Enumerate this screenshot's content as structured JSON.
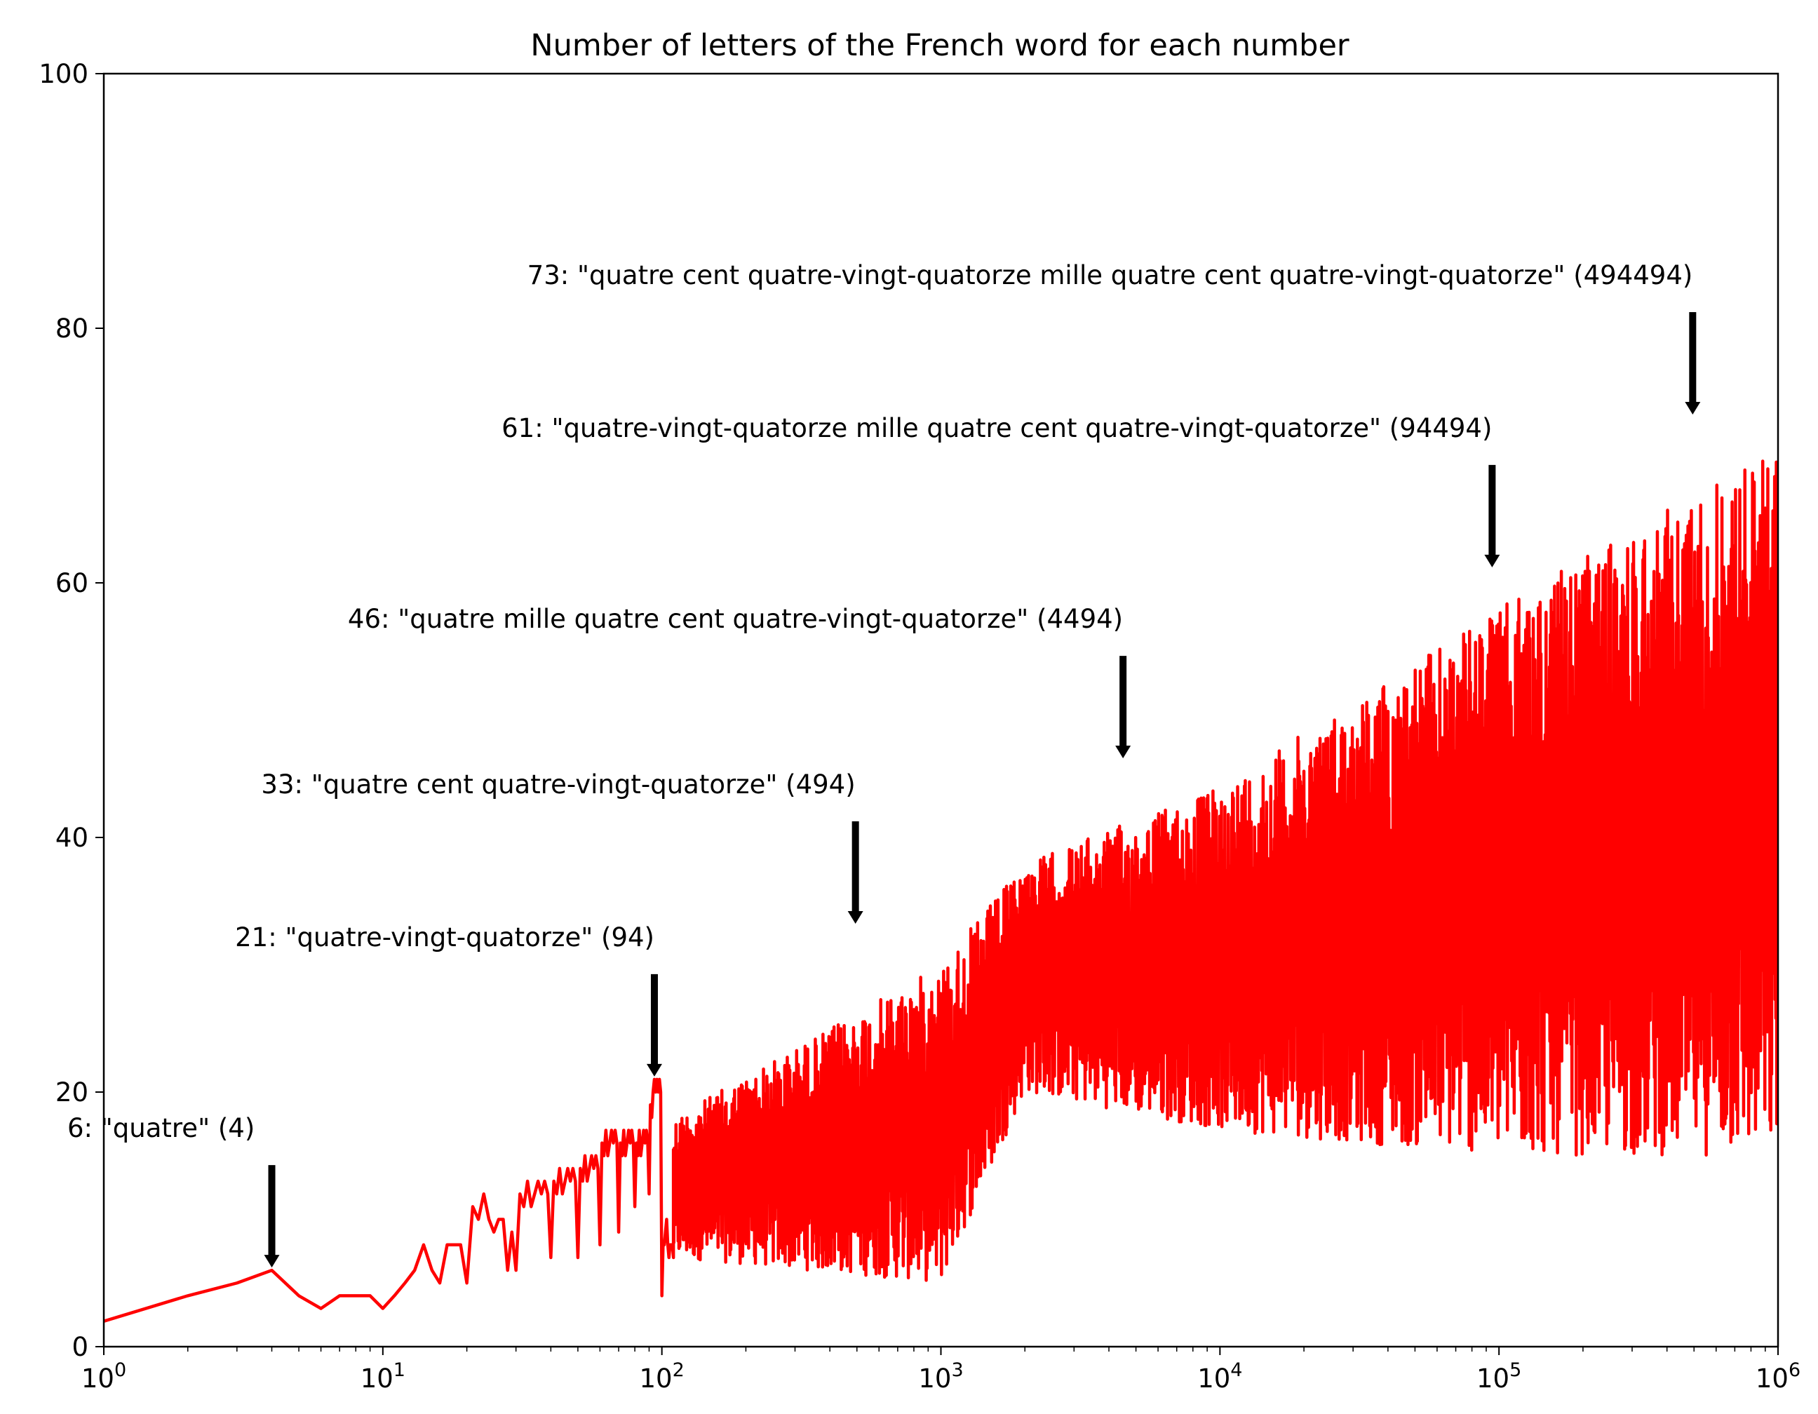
{
  "chart_data": {
    "type": "line",
    "title": "Number of letters of the French word for each number",
    "xlabel": "",
    "ylabel": "",
    "xscale": "log",
    "xlim": [
      1,
      1000000
    ],
    "ylim": [
      0,
      100
    ],
    "grid": false,
    "legend": "none",
    "line_color": "#ff0000",
    "arrow_color": "#000000",
    "x_ticks": [
      {
        "base": "10",
        "exp": "0",
        "value": 1
      },
      {
        "base": "10",
        "exp": "1",
        "value": 10
      },
      {
        "base": "10",
        "exp": "2",
        "value": 100
      },
      {
        "base": "10",
        "exp": "3",
        "value": 1000
      },
      {
        "base": "10",
        "exp": "4",
        "value": 10000
      },
      {
        "base": "10",
        "exp": "5",
        "value": 100000
      },
      {
        "base": "10",
        "exp": "6",
        "value": 1000000
      }
    ],
    "y_ticks": [
      "0",
      "20",
      "40",
      "60",
      "80",
      "100"
    ],
    "series": [
      {
        "x": [
          1,
          2,
          3,
          4,
          5,
          6,
          7,
          8,
          9,
          10,
          11,
          12,
          13,
          14,
          15,
          16,
          17,
          18,
          19,
          20,
          21,
          22,
          23,
          24,
          25,
          26,
          27,
          28,
          29,
          30,
          31,
          32,
          33,
          34,
          35,
          36,
          37,
          38,
          39,
          40,
          41,
          42,
          43,
          44,
          45,
          46,
          47,
          48,
          49,
          50,
          51,
          52,
          53,
          54,
          55,
          56,
          57,
          58,
          59,
          60,
          61,
          62,
          63,
          64,
          65,
          66,
          67,
          68,
          69,
          70,
          71,
          72,
          73,
          74,
          75,
          76,
          77,
          78,
          79,
          80,
          81,
          82,
          83,
          84,
          85,
          86,
          87,
          88,
          89,
          90,
          91,
          92,
          93,
          94,
          95,
          96,
          97,
          98,
          99,
          100,
          101,
          102,
          103,
          104,
          105,
          106,
          107,
          108,
          109,
          110
        ],
        "y": [
          2,
          4,
          5,
          6,
          4,
          3,
          4,
          4,
          4,
          3,
          4,
          5,
          6,
          8,
          6,
          5,
          8,
          8,
          8,
          5,
          11,
          10,
          12,
          10,
          9,
          10,
          10,
          6,
          9,
          6,
          12,
          11,
          13,
          11,
          12,
          13,
          12,
          13,
          12,
          7,
          13,
          12,
          14,
          12,
          13,
          14,
          13,
          14,
          13,
          7,
          14,
          13,
          15,
          13,
          14,
          15,
          14,
          15,
          14,
          8,
          16,
          15,
          17,
          15,
          16,
          17,
          16,
          17,
          16,
          9,
          16,
          15,
          17,
          15,
          16,
          17,
          16,
          17,
          16,
          11,
          16,
          15,
          17,
          15,
          16,
          17,
          16,
          17,
          16,
          12,
          19,
          18,
          20,
          21,
          20,
          21,
          20,
          21,
          20,
          4,
          8,
          8,
          9,
          10,
          8,
          7,
          8,
          8,
          8,
          7
        ],
        "y_band_1e3": [
          [
            1000,
            5,
            30
          ],
          [
            2000,
            20,
            38
          ],
          [
            10000,
            17,
            44
          ],
          [
            100000,
            15,
            58
          ],
          [
            1000000,
            15,
            71
          ]
        ]
      }
    ],
    "annotations": [
      {
        "text": "6: \"quatre\" (4)",
        "x": 4,
        "y": 6
      },
      {
        "text": "21: \"quatre-vingt-quatorze\" (94)",
        "x": 94,
        "y": 21
      },
      {
        "text": "33: \"quatre cent quatre-vingt-quatorze\" (494)",
        "x": 494,
        "y": 33
      },
      {
        "text": "46: \"quatre mille quatre cent quatre-vingt-quatorze\" (4494)",
        "x": 4494,
        "y": 46
      },
      {
        "text": "61: \"quatre-vingt-quatorze mille quatre cent quatre-vingt-quatorze\" (94494)",
        "x": 94494,
        "y": 61
      },
      {
        "text": "73: \"quatre cent quatre-vingt-quatorze mille quatre cent quatre-vingt-quatorze\" (494494)",
        "x": 494494,
        "y": 73
      }
    ]
  }
}
